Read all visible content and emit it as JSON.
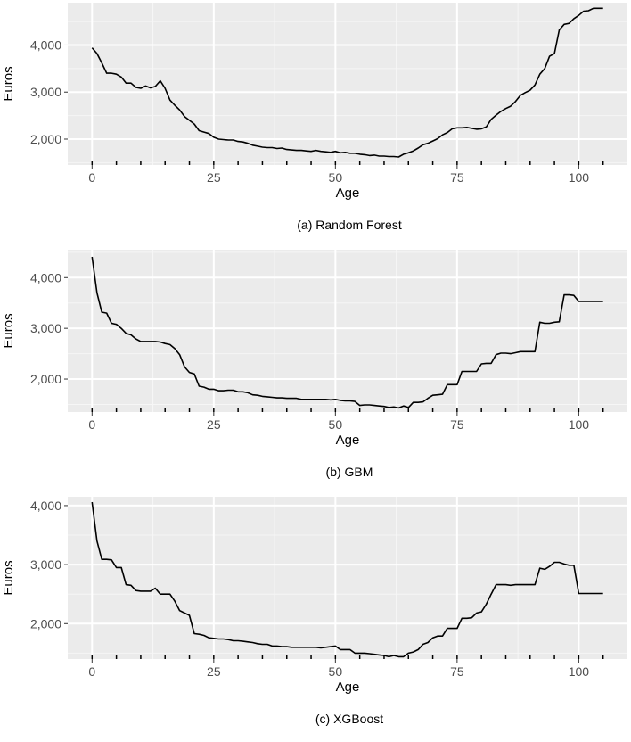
{
  "chart_data": [
    {
      "type": "line",
      "caption": "(a) Random Forest",
      "xlabel": "Age",
      "ylabel": "Euros",
      "xlim": [
        -5,
        110
      ],
      "ylim": [
        1450,
        4900
      ],
      "xticks": [
        0,
        25,
        50,
        75,
        100
      ],
      "xtick_labels": [
        "0",
        "25",
        "50",
        "75",
        "100"
      ],
      "yticks": [
        2000,
        3000,
        4000
      ],
      "ytick_labels": [
        "2,000",
        "3,000",
        "4,000"
      ],
      "x": [
        0,
        1,
        2,
        3,
        4,
        5,
        6,
        7,
        8,
        9,
        10,
        11,
        12,
        13,
        14,
        15,
        16,
        17,
        18,
        19,
        20,
        21,
        22,
        23,
        24,
        25,
        26,
        27,
        28,
        29,
        30,
        31,
        32,
        33,
        34,
        35,
        36,
        37,
        38,
        39,
        40,
        41,
        42,
        43,
        44,
        45,
        46,
        47,
        48,
        49,
        50,
        51,
        52,
        53,
        54,
        55,
        56,
        57,
        58,
        59,
        60,
        61,
        62,
        63,
        64,
        65,
        66,
        67,
        68,
        69,
        70,
        71,
        72,
        73,
        74,
        75,
        76,
        77,
        78,
        79,
        80,
        81,
        82,
        83,
        84,
        85,
        86,
        87,
        88,
        89,
        90,
        91,
        92,
        93,
        94,
        95,
        96,
        97,
        98,
        99,
        100,
        101,
        102,
        103,
        104,
        105
      ],
      "values": [
        3940,
        3820,
        3620,
        3400,
        3400,
        3380,
        3320,
        3190,
        3190,
        3100,
        3080,
        3130,
        3090,
        3120,
        3240,
        3080,
        2830,
        2720,
        2620,
        2480,
        2400,
        2320,
        2180,
        2150,
        2120,
        2040,
        2000,
        1990,
        1980,
        1980,
        1950,
        1940,
        1910,
        1870,
        1850,
        1830,
        1820,
        1820,
        1800,
        1810,
        1780,
        1770,
        1760,
        1760,
        1750,
        1740,
        1760,
        1740,
        1730,
        1720,
        1740,
        1710,
        1720,
        1700,
        1700,
        1680,
        1670,
        1650,
        1660,
        1640,
        1640,
        1630,
        1630,
        1620,
        1680,
        1710,
        1750,
        1810,
        1880,
        1910,
        1960,
        2010,
        2090,
        2140,
        2220,
        2240,
        2240,
        2250,
        2230,
        2210,
        2220,
        2260,
        2420,
        2510,
        2590,
        2650,
        2700,
        2800,
        2930,
        2990,
        3040,
        3150,
        3380,
        3500,
        3760,
        3820,
        4320,
        4440,
        4460,
        4560,
        4630,
        4720,
        4730,
        4780,
        4780,
        4780
      ]
    },
    {
      "type": "line",
      "caption": "(b) GBM",
      "xlabel": "Age",
      "ylabel": "Euros",
      "xlim": [
        -5,
        110
      ],
      "ylim": [
        1350,
        4550
      ],
      "xticks": [
        0,
        25,
        50,
        75,
        100
      ],
      "xtick_labels": [
        "0",
        "25",
        "50",
        "75",
        "100"
      ],
      "yticks": [
        2000,
        3000,
        4000
      ],
      "ytick_labels": [
        "2,000",
        "3,000",
        "4,000"
      ],
      "x": [
        0,
        1,
        2,
        3,
        4,
        5,
        6,
        7,
        8,
        9,
        10,
        11,
        12,
        13,
        14,
        15,
        16,
        17,
        18,
        19,
        20,
        21,
        22,
        23,
        24,
        25,
        26,
        27,
        28,
        29,
        30,
        31,
        32,
        33,
        34,
        35,
        36,
        37,
        38,
        39,
        40,
        41,
        42,
        43,
        44,
        45,
        46,
        47,
        48,
        49,
        50,
        51,
        52,
        53,
        54,
        55,
        56,
        57,
        58,
        59,
        60,
        61,
        62,
        63,
        64,
        65,
        66,
        67,
        68,
        69,
        70,
        71,
        72,
        73,
        74,
        75,
        76,
        77,
        78,
        79,
        80,
        81,
        82,
        83,
        84,
        85,
        86,
        87,
        88,
        89,
        90,
        91,
        92,
        93,
        94,
        95,
        96,
        97,
        98,
        99,
        100,
        101,
        102,
        103,
        104,
        105
      ],
      "values": [
        4410,
        3700,
        3320,
        3300,
        3100,
        3080,
        3000,
        2900,
        2870,
        2790,
        2740,
        2740,
        2740,
        2740,
        2730,
        2700,
        2680,
        2600,
        2480,
        2240,
        2130,
        2100,
        1860,
        1840,
        1800,
        1800,
        1770,
        1770,
        1780,
        1780,
        1750,
        1750,
        1730,
        1690,
        1680,
        1660,
        1650,
        1640,
        1630,
        1630,
        1620,
        1620,
        1620,
        1600,
        1600,
        1600,
        1600,
        1600,
        1600,
        1590,
        1600,
        1580,
        1570,
        1570,
        1560,
        1480,
        1490,
        1490,
        1480,
        1470,
        1460,
        1440,
        1450,
        1430,
        1470,
        1440,
        1540,
        1540,
        1550,
        1620,
        1680,
        1690,
        1700,
        1890,
        1890,
        1890,
        2150,
        2150,
        2150,
        2150,
        2300,
        2310,
        2310,
        2480,
        2510,
        2510,
        2500,
        2520,
        2540,
        2540,
        2540,
        2540,
        3120,
        3100,
        3100,
        3120,
        3130,
        3660,
        3660,
        3650,
        3530,
        3530,
        3530,
        3530,
        3530,
        3530
      ]
    },
    {
      "type": "line",
      "caption": "(c) XGBoost",
      "xlabel": "Age",
      "ylabel": "Euros",
      "xlim": [
        -5,
        110
      ],
      "ylim": [
        1400,
        4150
      ],
      "xticks": [
        0,
        25,
        50,
        75,
        100
      ],
      "xtick_labels": [
        "0",
        "25",
        "50",
        "75",
        "100"
      ],
      "yticks": [
        2000,
        3000,
        4000
      ],
      "ytick_labels": [
        "2,000",
        "3,000",
        "4,000"
      ],
      "x": [
        0,
        1,
        2,
        3,
        4,
        5,
        6,
        7,
        8,
        9,
        10,
        11,
        12,
        13,
        14,
        15,
        16,
        17,
        18,
        19,
        20,
        21,
        22,
        23,
        24,
        25,
        26,
        27,
        28,
        29,
        30,
        31,
        32,
        33,
        34,
        35,
        36,
        37,
        38,
        39,
        40,
        41,
        42,
        43,
        44,
        45,
        46,
        47,
        48,
        49,
        50,
        51,
        52,
        53,
        54,
        55,
        56,
        57,
        58,
        59,
        60,
        61,
        62,
        63,
        64,
        65,
        66,
        67,
        68,
        69,
        70,
        71,
        72,
        73,
        74,
        75,
        76,
        77,
        78,
        79,
        80,
        81,
        82,
        83,
        84,
        85,
        86,
        87,
        88,
        89,
        90,
        91,
        92,
        93,
        94,
        95,
        96,
        97,
        98,
        99,
        100,
        101,
        102,
        103,
        104,
        105
      ],
      "values": [
        4060,
        3400,
        3090,
        3090,
        3080,
        2950,
        2950,
        2660,
        2650,
        2560,
        2550,
        2550,
        2550,
        2600,
        2500,
        2500,
        2500,
        2380,
        2220,
        2180,
        2140,
        1830,
        1820,
        1800,
        1760,
        1750,
        1740,
        1740,
        1730,
        1710,
        1710,
        1700,
        1690,
        1680,
        1660,
        1650,
        1650,
        1620,
        1620,
        1610,
        1610,
        1600,
        1600,
        1600,
        1600,
        1600,
        1600,
        1590,
        1600,
        1610,
        1620,
        1560,
        1560,
        1560,
        1500,
        1500,
        1500,
        1490,
        1480,
        1470,
        1460,
        1440,
        1460,
        1440,
        1440,
        1500,
        1520,
        1560,
        1650,
        1680,
        1760,
        1790,
        1790,
        1920,
        1920,
        1920,
        2090,
        2090,
        2100,
        2180,
        2200,
        2330,
        2500,
        2660,
        2660,
        2660,
        2650,
        2660,
        2660,
        2660,
        2660,
        2660,
        2940,
        2920,
        2970,
        3040,
        3040,
        3010,
        2990,
        2990,
        2510,
        2510,
        2510,
        2510,
        2510,
        2510
      ]
    }
  ]
}
